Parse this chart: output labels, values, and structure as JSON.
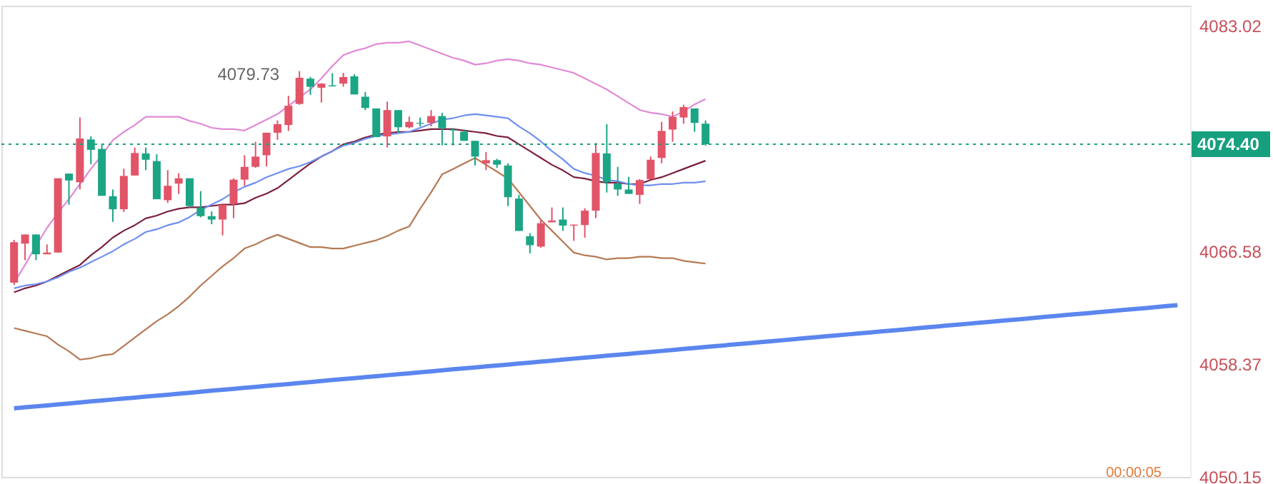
{
  "chart_data": {
    "type": "candlestick",
    "categories": [
      null,
      null,
      null,
      null,
      null,
      null,
      null,
      null,
      null,
      null,
      null,
      null,
      null,
      null,
      null,
      null,
      null,
      null,
      null,
      null,
      null,
      null,
      null,
      null,
      null,
      null,
      null,
      null,
      null,
      null,
      null,
      null,
      null,
      null,
      null,
      null,
      null,
      null,
      null,
      null,
      null,
      null,
      null,
      null,
      null,
      null,
      null,
      null,
      null,
      null,
      null,
      null,
      null,
      null,
      null,
      null,
      null,
      null,
      null,
      null,
      null,
      null,
      null,
      null,
      null,
      null,
      null,
      null,
      null,
      null,
      null,
      null,
      null,
      null,
      null,
      null,
      null,
      null,
      null,
      null,
      null,
      null,
      null,
      null,
      null,
      null,
      null,
      null,
      null,
      null,
      null,
      null,
      null,
      null,
      null,
      null,
      null,
      null,
      null,
      null,
      null,
      null,
      null,
      null,
      null,
      null,
      null
    ],
    "ohlc": [
      [
        4064.31,
        4067.43,
        4064.14,
        4067.26
      ],
      [
        4067.16,
        4067.82,
        4065.95,
        4067.82
      ],
      [
        4067.82,
        4067.82,
        4065.95,
        4066.38
      ],
      [
        4066.38,
        4067.1,
        4066.38,
        4066.5
      ],
      [
        4066.5,
        4071.92,
        4066.5,
        4071.92
      ],
      [
        4072.26,
        4072.26,
        4069.99,
        4071.76
      ],
      [
        4071.63,
        4076.35,
        4071.1,
        4074.82
      ],
      [
        4074.75,
        4074.97,
        4072.95,
        4073.99
      ],
      [
        4074.06,
        4074.38,
        4070.64,
        4070.64
      ],
      [
        4070.61,
        4071.1,
        4068.74,
        4069.66
      ],
      [
        4069.66,
        4072.61,
        4069.46,
        4072.09
      ],
      [
        4072.12,
        4074.16,
        4072.12,
        4073.76
      ],
      [
        4073.73,
        4074.16,
        4072.51,
        4073.27
      ],
      [
        4073.17,
        4073.67,
        4070.39,
        4070.39
      ],
      [
        4070.32,
        4072.51,
        4070.12,
        4071.37
      ],
      [
        4071.53,
        4072.29,
        4070.78,
        4071.92
      ],
      [
        4071.92,
        4071.92,
        4069.79,
        4069.89
      ],
      [
        4069.79,
        4070.98,
        4069.07,
        4069.16
      ],
      [
        4069.16,
        4069.5,
        4068.57,
        4068.91
      ],
      [
        4068.91,
        4069.99,
        4067.76,
        4069.99
      ],
      [
        4070.05,
        4071.92,
        4069.01,
        4071.82
      ],
      [
        4071.82,
        4073.6,
        4071.37,
        4072.75
      ],
      [
        4072.75,
        4074.58,
        4072.68,
        4073.5
      ],
      [
        4073.6,
        4075.24,
        4072.78,
        4075.24
      ],
      [
        4075.24,
        4076.13,
        4074.72,
        4075.86
      ],
      [
        4075.8,
        4077.93,
        4075.37,
        4077.21
      ],
      [
        4077.34,
        4079.73,
        4077.28,
        4079.25
      ],
      [
        4079.18,
        4079.31,
        4077.99,
        4078.59
      ],
      [
        4078.52,
        4078.86,
        4077.44,
        4078.82
      ],
      [
        4078.69,
        4079.58,
        4078.62,
        4078.62
      ],
      [
        4078.82,
        4079.6,
        4078.59,
        4079.3
      ],
      [
        4079.35,
        4079.5,
        4078.03,
        4078.03
      ],
      [
        4077.87,
        4078.2,
        4076.89,
        4077.04
      ],
      [
        4077.01,
        4077.01,
        4074.92,
        4074.92
      ],
      [
        4074.97,
        4077.51,
        4074.16,
        4076.89
      ],
      [
        4076.89,
        4076.89,
        4075.24,
        4075.64
      ],
      [
        4075.64,
        4076.42,
        4075.57,
        4076.03
      ],
      [
        4075.96,
        4076.35,
        4075.7,
        4075.9
      ],
      [
        4075.96,
        4076.89,
        4075.7,
        4076.45
      ],
      [
        4076.45,
        4076.69,
        4074.32,
        4075.57
      ],
      [
        4075.47,
        4075.57,
        4074.32,
        4075.41
      ],
      [
        4075.31,
        4075.47,
        4074.65,
        4074.65
      ],
      [
        4074.65,
        4074.65,
        4072.85,
        4073.5
      ],
      [
        4073.01,
        4073.83,
        4072.51,
        4073.24
      ],
      [
        4073.24,
        4073.34,
        4072.68,
        4072.91
      ],
      [
        4072.85,
        4073.01,
        4069.89,
        4070.54
      ],
      [
        4070.44,
        4070.71,
        4068.08,
        4068.08
      ],
      [
        4067.69,
        4067.92,
        4066.45,
        4067.04
      ],
      [
        4066.94,
        4068.91,
        4066.84,
        4068.64
      ],
      [
        4068.71,
        4069.79,
        4068.71,
        4068.84
      ],
      [
        4068.91,
        4069.79,
        4068.08,
        4068.47
      ],
      [
        4068.47,
        4068.54,
        4067.36,
        4068.54
      ],
      [
        4068.51,
        4069.73,
        4067.59,
        4069.56
      ],
      [
        4069.56,
        4074.48,
        4069.01,
        4073.76
      ],
      [
        4073.73,
        4075.86,
        4070.88,
        4071.63
      ],
      [
        4071.53,
        4072.75,
        4070.64,
        4071.1
      ],
      [
        4071.1,
        4072.02,
        4070.78,
        4070.78
      ],
      [
        4070.71,
        4071.86,
        4070.05,
        4071.79
      ],
      [
        4071.86,
        4073.5,
        4071.86,
        4073.27
      ],
      [
        4073.4,
        4076.03,
        4073.01,
        4075.37
      ],
      [
        4075.47,
        4076.79,
        4074.58,
        4076.39
      ],
      [
        4076.35,
        4077.28,
        4075.9,
        4077.11
      ],
      [
        4077.01,
        4077.01,
        4075.31,
        4075.96
      ],
      [
        4075.9,
        4076.13,
        4074.3,
        4074.4
      ],
      null,
      null,
      null,
      null,
      null,
      null,
      null,
      null,
      null,
      null,
      null,
      null,
      null,
      null,
      null,
      null,
      null,
      null,
      null,
      null,
      null,
      null,
      null,
      null,
      null,
      null,
      null,
      null,
      null,
      null,
      null,
      null,
      null,
      null,
      null,
      null,
      null,
      null,
      null,
      null,
      null,
      null,
      null
    ],
    "colors": [
      "#e25468",
      "#e25468",
      "#1ba585",
      "#e25468",
      "#e25468",
      "#1ba585",
      "#e25468",
      "#1ba585",
      "#1ba585",
      "#1ba585",
      "#e25468",
      "#e25468",
      "#1ba585",
      "#1ba585",
      "#e25468",
      "#e25468",
      "#1ba585",
      "#1ba585",
      "#1ba585",
      "#e25468",
      "#e25468",
      "#e25468",
      "#e25468",
      "#e25468",
      "#e25468",
      "#e25468",
      "#e25468",
      "#1ba585",
      "#e25468",
      "#1ba585",
      "#e25468",
      "#1ba585",
      "#1ba585",
      "#1ba585",
      "#e25468",
      "#1ba585",
      "#e25468",
      "#1ba585",
      "#e25468",
      "#1ba585",
      "#1ba585",
      "#1ba585",
      "#1ba585",
      "#e25468",
      "#1ba585",
      "#1ba585",
      "#1ba585",
      "#1ba585",
      "#e25468",
      "#e25468",
      "#1ba585",
      "#e25468",
      "#e25468",
      "#e25468",
      "#1ba585",
      "#1ba585",
      "#1ba585",
      "#e25468",
      "#e25468",
      "#e25468",
      "#e25468",
      "#e25468",
      "#1ba585",
      "#1ba585",
      null,
      null,
      null,
      null,
      null,
      null,
      null,
      null,
      null,
      null,
      null,
      null,
      null,
      null,
      null,
      null,
      null,
      null,
      null,
      null,
      null,
      null,
      null,
      null,
      null,
      null,
      null,
      null,
      null,
      null,
      null,
      null,
      null,
      null,
      null,
      null,
      null,
      null,
      null,
      null,
      null,
      null,
      null
    ],
    "series": [
      {
        "type": "line",
        "color": "#e08ad6",
        "values": [
          4064.3,
          4065.6,
          4067.0,
          4068.3,
          4069.4,
          4070.4,
          4071.5,
          4072.6,
          4073.6,
          4074.7,
          4075.3,
          4075.8,
          4076.4,
          4076.4,
          4076.4,
          4076.4,
          4076.1,
          4075.9,
          4075.6,
          4075.5,
          4075.5,
          4075.4,
          4075.8,
          4076.2,
          4076.6,
          4077.2,
          4077.8,
          4078.4,
          4079.2,
          4080.1,
          4080.9,
          4081.2,
          4081.4,
          4081.7,
          4081.8,
          4081.8,
          4081.9,
          4081.6,
          4081.3,
          4081.0,
          4080.7,
          4080.5,
          4080.2,
          4080.3,
          4080.5,
          4080.6,
          4080.5,
          4080.3,
          4080.2,
          4080.0,
          4079.8,
          4079.6,
          4079.2,
          4078.8,
          4078.4,
          4077.9,
          4077.4,
          4076.9,
          4076.7,
          4076.6,
          4076.4,
          4076.8,
          4077.3,
          4077.7,
          null,
          null,
          null,
          null,
          null,
          null,
          null,
          null,
          null,
          null,
          null,
          null,
          null,
          null,
          null,
          null,
          null,
          null,
          null,
          null,
          null,
          null,
          null,
          null,
          null,
          null,
          null,
          null,
          null,
          null,
          null,
          null,
          null,
          null,
          null,
          null,
          null,
          null,
          null,
          null,
          null,
          null,
          null
        ]
      },
      {
        "type": "line",
        "color": "#b57a55",
        "values": [
          4061.0,
          4060.8,
          4060.6,
          4060.4,
          4059.8,
          4059.3,
          4058.7,
          4058.8,
          4059.0,
          4059.1,
          4059.7,
          4060.3,
          4060.9,
          4061.5,
          4062.0,
          4062.6,
          4063.3,
          4064.1,
          4064.8,
          4065.5,
          4066.1,
          4066.8,
          4067.1,
          4067.5,
          4067.8,
          4067.5,
          4067.2,
          4066.9,
          4066.9,
          4066.8,
          4066.8,
          4067.0,
          4067.2,
          4067.4,
          4067.7,
          4068.1,
          4068.4,
          4069.7,
          4070.9,
          4072.2,
          4072.6,
          4073.0,
          4073.4,
          4072.9,
          4072.4,
          4071.9,
          4070.9,
          4069.9,
          4068.9,
          4068.1,
          4067.3,
          4066.5,
          4066.3,
          4066.2,
          4066.0,
          4066.1,
          4066.1,
          4066.2,
          4066.2,
          4066.1,
          4066.1,
          4065.9,
          4065.8,
          4065.7,
          null,
          null,
          null,
          null,
          null,
          null,
          null,
          null,
          null,
          null,
          null,
          null,
          null,
          null,
          null,
          null,
          null,
          null,
          null,
          null,
          null,
          null,
          null,
          null,
          null,
          null,
          null,
          null,
          null,
          null,
          null,
          null,
          null,
          null,
          null,
          null,
          null,
          null,
          null,
          null,
          null,
          null,
          null
        ]
      },
      {
        "type": "line",
        "color": "#7b1f3f",
        "values": [
          4063.6,
          4063.9,
          4064.1,
          4064.4,
          4064.8,
          4065.2,
          4065.6,
          4066.3,
          4066.9,
          4067.6,
          4068.1,
          4068.5,
          4069.0,
          4069.2,
          4069.5,
          4069.7,
          4069.8,
          4069.8,
          4069.9,
          4070.0,
          4070.0,
          4070.1,
          4070.5,
          4070.8,
          4071.2,
          4071.8,
          4072.4,
          4073.0,
          4073.5,
          4073.9,
          4074.4,
          4074.6,
          4074.9,
          4075.1,
          4075.2,
          4075.3,
          4075.3,
          4075.4,
          4075.5,
          4075.5,
          4075.5,
          4075.4,
          4075.3,
          4075.2,
          4075.0,
          4074.9,
          4074.4,
          4073.9,
          4073.4,
          4072.9,
          4072.5,
          4072.0,
          4071.9,
          4071.7,
          4071.6,
          4071.6,
          4071.5,
          4071.5,
          4071.8,
          4072.0,
          4072.3,
          4072.6,
          4072.9,
          4073.2,
          null,
          null,
          null,
          null,
          null,
          null,
          null,
          null,
          null,
          null,
          null,
          null,
          null,
          null,
          null,
          null,
          null,
          null,
          null,
          null,
          null,
          null,
          null,
          null,
          null,
          null,
          null,
          null,
          null,
          null,
          null,
          null,
          null,
          null,
          null,
          null,
          null,
          null,
          null,
          null,
          null,
          null,
          null
        ]
      },
      {
        "type": "line",
        "color": "#6f8ff0",
        "values": [
          4063.9,
          4064.1,
          4064.2,
          4064.4,
          4064.7,
          4065.1,
          4065.4,
          4065.8,
          4066.2,
          4066.6,
          4067.1,
          4067.5,
          4068.0,
          4068.2,
          4068.5,
          4068.7,
          4069.1,
          4069.6,
          4070.0,
          4070.4,
          4070.9,
          4071.3,
          4071.6,
          4072.0,
          4072.3,
          4072.6,
          4072.8,
          4073.1,
          4073.5,
          4073.9,
          4074.3,
          4074.5,
          4074.8,
          4075.0,
          4075.1,
          4075.2,
          4075.3,
          4075.6,
          4075.9,
          4076.2,
          4076.3,
          4076.5,
          4076.6,
          4076.5,
          4076.4,
          4076.3,
          4075.7,
          4075.2,
          4074.6,
          4073.9,
          4073.3,
          4072.6,
          4072.3,
          4072.1,
          4071.8,
          4071.7,
          4071.5,
          4071.4,
          4071.4,
          4071.5,
          4071.5,
          4071.6,
          4071.6,
          4071.7,
          null,
          null,
          null,
          null,
          null,
          null,
          null,
          null,
          null,
          null,
          null,
          null,
          null,
          null,
          null,
          null,
          null,
          null,
          null,
          null,
          null,
          null,
          null,
          null,
          null,
          null,
          null,
          null,
          null,
          null,
          null,
          null,
          null,
          null,
          null,
          null,
          null,
          null,
          null,
          null,
          null,
          null,
          null
        ]
      },
      {
        "type": "line",
        "color": "#5b86ee",
        "values": [
          4055.15,
          4055.22,
          4055.29,
          4055.36,
          4055.43,
          4055.5,
          4055.58,
          4055.65,
          4055.72,
          4055.79,
          4055.86,
          4055.93,
          4056.0,
          4056.07,
          4056.14,
          4056.21,
          4056.28,
          4056.36,
          4056.43,
          4056.5,
          4056.57,
          4056.64,
          4056.71,
          4056.78,
          4056.85,
          4056.92,
          4056.99,
          4057.06,
          4057.14,
          4057.21,
          4057.28,
          4057.35,
          4057.42,
          4057.49,
          4057.56,
          4057.63,
          4057.7,
          4057.77,
          4057.84,
          4057.92,
          4057.99,
          4058.06,
          4058.13,
          4058.2,
          4058.27,
          4058.34,
          4058.41,
          4058.48,
          4058.55,
          4058.62,
          4058.7,
          4058.77,
          4058.84,
          4058.91,
          4058.98,
          4059.05,
          4059.12,
          4059.19,
          4059.26,
          4059.33,
          4059.4,
          4059.48,
          4059.55,
          4059.62,
          4059.69,
          4059.76,
          4059.83,
          4059.9,
          4059.97,
          4060.04,
          4060.11,
          4060.18,
          4060.26,
          4060.33,
          4060.4,
          4060.47,
          4060.54,
          4060.61,
          4060.68,
          4060.75,
          4060.82,
          4060.89,
          4060.96,
          4061.04,
          4061.11,
          4061.18,
          4061.25,
          4061.32,
          4061.39,
          4061.46,
          4061.53,
          4061.6,
          4061.67,
          4061.74,
          4061.82,
          4061.89,
          4061.96,
          4062.03,
          4062.1,
          4062.17,
          4062.24,
          4062.31,
          4062.38,
          4062.45,
          4062.52,
          4062.6,
          4062.67
        ]
      }
    ],
    "ylim": [
      4050.15,
      4084.5
    ],
    "yticks": [
      4050.15,
      4058.37,
      4066.58,
      4083.02
    ],
    "tick_labels": "y",
    "ref_lines": [
      {
        "axis": "y",
        "value": 4074.4,
        "label": "4074.40",
        "color": "#17a07e",
        "line_style": "dotted"
      }
    ],
    "annotations": [
      "4079.73",
      "00:00:05"
    ]
  }
}
